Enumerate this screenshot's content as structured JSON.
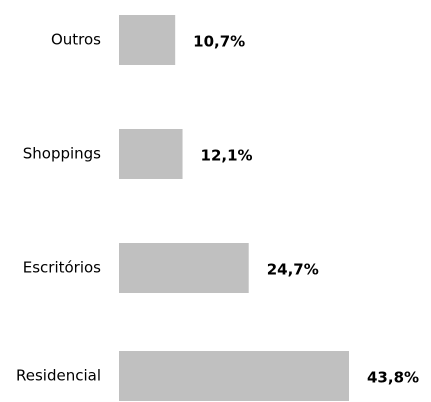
{
  "chart_data": {
    "type": "hbar",
    "categories": [
      "Outros",
      "Shoppings",
      "Escritórios",
      "Residencial"
    ],
    "values": [
      10.7,
      12.1,
      24.7,
      43.8
    ],
    "value_labels": [
      "10,7%",
      "12,1%",
      "24,7%",
      "43,8%"
    ],
    "color": "#c0c0c0"
  }
}
